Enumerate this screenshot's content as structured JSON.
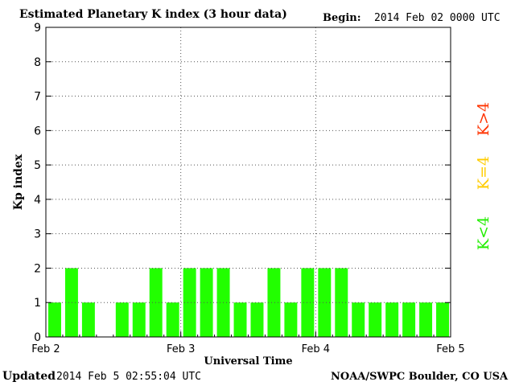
{
  "header": {
    "title": "Estimated Planetary K index (3 hour data)",
    "begin_label": "Begin:",
    "begin_value": "2014 Feb 02 0000 UTC"
  },
  "footer": {
    "updated_label": "Updated",
    "updated_value": "2014 Feb  5 02:55:04 UTC",
    "credit": "NOAA/SWPC Boulder, CO USA"
  },
  "legend": [
    {
      "label": "K>4",
      "color": "#ff3300"
    },
    {
      "label": "K=4",
      "color": "#ffcc00"
    },
    {
      "label": "K<4",
      "color": "#22ee00"
    }
  ],
  "colors": {
    "bar": "#22ff00",
    "axis": "#000000",
    "grid": "#555555"
  },
  "chart_data": {
    "type": "bar",
    "title": "Estimated Planetary K index (3 hour data)",
    "xlabel": "Universal Time",
    "ylabel": "Kp index",
    "ylim": [
      0,
      9
    ],
    "yticks": [
      "0",
      "1",
      "2",
      "3",
      "4",
      "5",
      "6",
      "7",
      "8",
      "9"
    ],
    "xticks": [
      "Feb 2",
      "Feb 3",
      "Feb 4",
      "Feb 5"
    ],
    "bin_hours": 3,
    "grid": true,
    "values": [
      1,
      2,
      1,
      null,
      1,
      1,
      2,
      1,
      2,
      2,
      2,
      1,
      1,
      2,
      1,
      2,
      2,
      2,
      1,
      1,
      1,
      1,
      1,
      1
    ]
  }
}
